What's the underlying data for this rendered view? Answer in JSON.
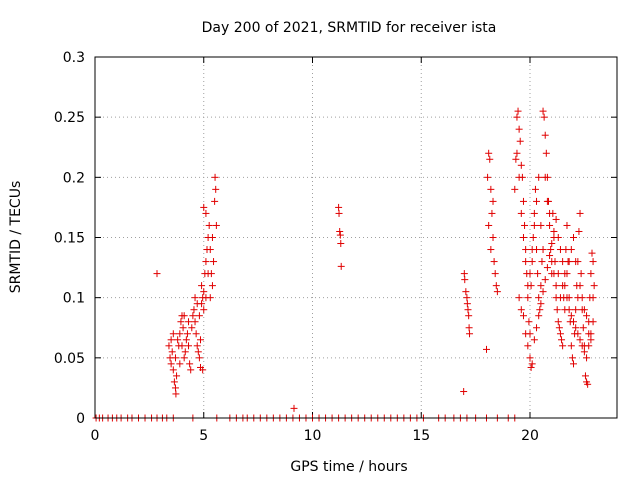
{
  "chart_data": {
    "type": "scatter",
    "title": "Day 200 of 2021, SRMTID for receiver ista",
    "xlabel": "GPS time / hours",
    "ylabel": "SRMTID / TECUs",
    "xlim": [
      0,
      24
    ],
    "ylim": [
      0,
      0.3
    ],
    "xticks": [
      0,
      5,
      10,
      15,
      20
    ],
    "xtick_labels": [
      "0",
      "5",
      "10",
      "15",
      "20"
    ],
    "yticks": [
      0,
      0.05,
      0.1,
      0.15,
      0.2,
      0.25,
      0.3
    ],
    "ytick_labels": [
      "0",
      "0.05",
      "0.1",
      "0.15",
      "0.2",
      "0.25",
      "0.3"
    ],
    "grid": true,
    "marker": "plus",
    "color": "#e00000",
    "series": [
      {
        "name": "SRMTID",
        "points": [
          [
            0.05,
            0
          ],
          [
            0.2,
            0
          ],
          [
            0.35,
            0
          ],
          [
            0.6,
            0
          ],
          [
            0.8,
            0
          ],
          [
            1.0,
            0
          ],
          [
            1.2,
            0
          ],
          [
            1.5,
            0
          ],
          [
            1.7,
            0
          ],
          [
            2.0,
            0
          ],
          [
            2.3,
            0
          ],
          [
            2.6,
            0
          ],
          [
            2.85,
            0
          ],
          [
            3.1,
            0
          ],
          [
            3.3,
            0
          ],
          [
            3.6,
            0
          ],
          [
            4.5,
            0
          ],
          [
            5.6,
            0
          ],
          [
            6.2,
            0
          ],
          [
            6.5,
            0
          ],
          [
            6.8,
            0
          ],
          [
            7.0,
            0
          ],
          [
            7.3,
            0
          ],
          [
            7.6,
            0
          ],
          [
            7.9,
            0
          ],
          [
            8.2,
            0
          ],
          [
            8.5,
            0
          ],
          [
            8.8,
            0
          ],
          [
            9.1,
            0
          ],
          [
            9.4,
            0
          ],
          [
            9.7,
            0
          ],
          [
            10.0,
            0
          ],
          [
            10.3,
            0
          ],
          [
            10.6,
            0
          ],
          [
            10.9,
            0
          ],
          [
            11.2,
            0
          ],
          [
            11.5,
            0
          ],
          [
            11.8,
            0
          ],
          [
            12.1,
            0
          ],
          [
            12.4,
            0
          ],
          [
            12.7,
            0
          ],
          [
            13.0,
            0
          ],
          [
            13.3,
            0
          ],
          [
            13.6,
            0
          ],
          [
            13.9,
            0
          ],
          [
            14.2,
            0
          ],
          [
            14.5,
            0
          ],
          [
            14.8,
            0
          ],
          [
            15.1,
            0
          ],
          [
            15.8,
            0
          ],
          [
            16.1,
            0
          ],
          [
            16.5,
            0
          ],
          [
            16.8,
            0
          ],
          [
            17.1,
            0
          ],
          [
            17.5,
            0
          ],
          [
            18.0,
            0
          ],
          [
            18.5,
            0
          ],
          [
            19.0,
            0
          ],
          [
            19.3,
            0
          ],
          [
            2.85,
            0.12
          ],
          [
            9.15,
            0.008
          ],
          [
            3.4,
            0.06
          ],
          [
            3.45,
            0.05
          ],
          [
            3.5,
            0.045
          ],
          [
            3.55,
            0.055
          ],
          [
            3.6,
            0.04
          ],
          [
            3.65,
            0.03
          ],
          [
            3.7,
            0.025
          ],
          [
            3.72,
            0.02
          ],
          [
            3.75,
            0.035
          ],
          [
            3.8,
            0.065
          ],
          [
            3.85,
            0.06
          ],
          [
            3.9,
            0.07
          ],
          [
            3.95,
            0.08
          ],
          [
            4.0,
            0.085
          ],
          [
            4.05,
            0.075
          ],
          [
            4.1,
            0.05
          ],
          [
            4.15,
            0.055
          ],
          [
            4.2,
            0.065
          ],
          [
            4.25,
            0.07
          ],
          [
            4.3,
            0.06
          ],
          [
            4.35,
            0.045
          ],
          [
            4.4,
            0.04
          ],
          [
            4.45,
            0.075
          ],
          [
            4.5,
            0.085
          ],
          [
            4.55,
            0.09
          ],
          [
            4.6,
            0.08
          ],
          [
            4.65,
            0.07
          ],
          [
            4.7,
            0.06
          ],
          [
            4.75,
            0.055
          ],
          [
            4.8,
            0.05
          ],
          [
            4.85,
            0.065
          ],
          [
            4.9,
            0.095
          ],
          [
            4.95,
            0.1
          ],
          [
            5.0,
            0.105
          ],
          [
            5.05,
            0.12
          ],
          [
            5.1,
            0.13
          ],
          [
            5.15,
            0.14
          ],
          [
            5.2,
            0.15
          ],
          [
            5.25,
            0.16
          ],
          [
            5.3,
            0.14
          ],
          [
            5.35,
            0.12
          ],
          [
            5.4,
            0.11
          ],
          [
            5.45,
            0.13
          ],
          [
            5.5,
            0.18
          ],
          [
            5.52,
            0.2
          ],
          [
            5.55,
            0.19
          ],
          [
            5.58,
            0.16
          ],
          [
            3.5,
            0.065
          ],
          [
            3.6,
            0.07
          ],
          [
            3.7,
            0.05
          ],
          [
            3.9,
            0.045
          ],
          [
            4.0,
            0.06
          ],
          [
            4.1,
            0.085
          ],
          [
            4.3,
            0.08
          ],
          [
            4.6,
            0.1
          ],
          [
            4.7,
            0.095
          ],
          [
            4.8,
            0.085
          ],
          [
            4.9,
            0.11
          ],
          [
            5.0,
            0.09
          ],
          [
            5.1,
            0.1
          ],
          [
            5.2,
            0.12
          ],
          [
            5.3,
            0.1
          ],
          [
            5.4,
            0.15
          ],
          [
            5.0,
            0.175
          ],
          [
            5.1,
            0.17
          ],
          [
            4.95,
            0.04
          ],
          [
            4.85,
            0.042
          ],
          [
            11.2,
            0.175
          ],
          [
            11.22,
            0.17
          ],
          [
            11.25,
            0.155
          ],
          [
            11.28,
            0.152
          ],
          [
            11.3,
            0.145
          ],
          [
            11.32,
            0.126
          ],
          [
            16.95,
            0.022
          ],
          [
            16.98,
            0.12
          ],
          [
            17.0,
            0.115
          ],
          [
            17.05,
            0.105
          ],
          [
            17.1,
            0.1
          ],
          [
            17.12,
            0.095
          ],
          [
            17.15,
            0.09
          ],
          [
            17.18,
            0.085
          ],
          [
            17.2,
            0.075
          ],
          [
            17.22,
            0.07
          ],
          [
            18.0,
            0.057
          ],
          [
            18.05,
            0.2
          ],
          [
            18.1,
            0.22
          ],
          [
            18.15,
            0.215
          ],
          [
            18.2,
            0.19
          ],
          [
            18.25,
            0.17
          ],
          [
            18.3,
            0.15
          ],
          [
            18.35,
            0.13
          ],
          [
            18.4,
            0.12
          ],
          [
            18.45,
            0.11
          ],
          [
            18.5,
            0.105
          ],
          [
            18.1,
            0.16
          ],
          [
            18.2,
            0.14
          ],
          [
            18.3,
            0.18
          ],
          [
            19.3,
            0.19
          ],
          [
            19.35,
            0.215
          ],
          [
            19.4,
            0.25
          ],
          [
            19.45,
            0.255
          ],
          [
            19.5,
            0.24
          ],
          [
            19.55,
            0.23
          ],
          [
            19.6,
            0.21
          ],
          [
            19.65,
            0.2
          ],
          [
            19.7,
            0.18
          ],
          [
            19.75,
            0.16
          ],
          [
            19.8,
            0.14
          ],
          [
            19.85,
            0.12
          ],
          [
            19.9,
            0.1
          ],
          [
            19.95,
            0.08
          ],
          [
            20.0,
            0.07
          ],
          [
            20.05,
            0.11
          ],
          [
            20.1,
            0.13
          ],
          [
            20.15,
            0.15
          ],
          [
            20.2,
            0.17
          ],
          [
            20.25,
            0.19
          ],
          [
            20.3,
            0.14
          ],
          [
            20.35,
            0.12
          ],
          [
            20.4,
            0.1
          ],
          [
            20.45,
            0.09
          ],
          [
            20.5,
            0.11
          ],
          [
            20.55,
            0.13
          ],
          [
            20.6,
            0.255
          ],
          [
            20.65,
            0.25
          ],
          [
            20.7,
            0.235
          ],
          [
            20.75,
            0.22
          ],
          [
            20.8,
            0.2
          ],
          [
            20.85,
            0.18
          ],
          [
            20.9,
            0.16
          ],
          [
            20.95,
            0.14
          ],
          [
            21.0,
            0.12
          ],
          [
            21.05,
            0.17
          ],
          [
            21.1,
            0.15
          ],
          [
            21.15,
            0.13
          ],
          [
            21.2,
            0.11
          ],
          [
            21.25,
            0.09
          ],
          [
            21.3,
            0.08
          ],
          [
            21.35,
            0.075
          ],
          [
            21.4,
            0.07
          ],
          [
            21.45,
            0.065
          ],
          [
            21.5,
            0.06
          ],
          [
            21.55,
            0.1
          ],
          [
            21.6,
            0.12
          ],
          [
            21.65,
            0.14
          ],
          [
            21.7,
            0.16
          ],
          [
            21.75,
            0.13
          ],
          [
            21.8,
            0.1
          ],
          [
            21.85,
            0.08
          ],
          [
            21.9,
            0.06
          ],
          [
            21.95,
            0.05
          ],
          [
            22.0,
            0.045
          ],
          [
            22.05,
            0.07
          ],
          [
            22.1,
            0.09
          ],
          [
            22.15,
            0.11
          ],
          [
            22.2,
            0.13
          ],
          [
            22.25,
            0.155
          ],
          [
            22.3,
            0.17
          ],
          [
            22.35,
            0.12
          ],
          [
            22.4,
            0.09
          ],
          [
            22.45,
            0.075
          ],
          [
            22.5,
            0.06
          ],
          [
            22.55,
            0.035
          ],
          [
            22.6,
            0.03
          ],
          [
            22.65,
            0.028
          ],
          [
            22.7,
            0.08
          ],
          [
            22.75,
            0.1
          ],
          [
            22.8,
            0.12
          ],
          [
            22.85,
            0.137
          ],
          [
            22.9,
            0.13
          ],
          [
            22.95,
            0.11
          ],
          [
            19.5,
            0.1
          ],
          [
            19.6,
            0.09
          ],
          [
            19.7,
            0.085
          ],
          [
            19.8,
            0.07
          ],
          [
            19.9,
            0.06
          ],
          [
            20.0,
            0.05
          ],
          [
            20.05,
            0.042
          ],
          [
            20.1,
            0.045
          ],
          [
            20.2,
            0.065
          ],
          [
            20.3,
            0.075
          ],
          [
            20.4,
            0.085
          ],
          [
            20.5,
            0.095
          ],
          [
            20.6,
            0.105
          ],
          [
            20.7,
            0.115
          ],
          [
            20.8,
            0.125
          ],
          [
            20.9,
            0.135
          ],
          [
            21.0,
            0.145
          ],
          [
            21.1,
            0.155
          ],
          [
            21.2,
            0.165
          ],
          [
            21.3,
            0.15
          ],
          [
            21.4,
            0.14
          ],
          [
            21.5,
            0.13
          ],
          [
            21.6,
            0.11
          ],
          [
            21.7,
            0.1
          ],
          [
            21.8,
            0.09
          ],
          [
            21.9,
            0.085
          ],
          [
            22.0,
            0.08
          ],
          [
            22.1,
            0.075
          ],
          [
            22.2,
            0.07
          ],
          [
            22.3,
            0.065
          ],
          [
            22.4,
            0.06
          ],
          [
            22.5,
            0.055
          ],
          [
            22.6,
            0.05
          ],
          [
            22.7,
            0.06
          ],
          [
            22.8,
            0.07
          ],
          [
            22.9,
            0.08
          ],
          [
            19.4,
            0.22
          ],
          [
            19.5,
            0.2
          ],
          [
            19.6,
            0.17
          ],
          [
            19.7,
            0.15
          ],
          [
            19.8,
            0.13
          ],
          [
            19.9,
            0.11
          ],
          [
            20.0,
            0.12
          ],
          [
            20.1,
            0.14
          ],
          [
            20.2,
            0.16
          ],
          [
            20.3,
            0.18
          ],
          [
            20.4,
            0.2
          ],
          [
            20.5,
            0.16
          ],
          [
            20.6,
            0.14
          ],
          [
            20.7,
            0.2
          ],
          [
            20.8,
            0.18
          ],
          [
            20.9,
            0.17
          ],
          [
            21.0,
            0.13
          ],
          [
            21.1,
            0.12
          ],
          [
            21.2,
            0.1
          ],
          [
            21.3,
            0.12
          ],
          [
            21.4,
            0.1
          ],
          [
            21.5,
            0.11
          ],
          [
            21.6,
            0.09
          ],
          [
            21.7,
            0.12
          ],
          [
            21.8,
            0.13
          ],
          [
            21.9,
            0.14
          ],
          [
            22.0,
            0.15
          ],
          [
            22.1,
            0.13
          ],
          [
            22.2,
            0.1
          ],
          [
            22.3,
            0.11
          ],
          [
            22.4,
            0.1
          ],
          [
            22.5,
            0.09
          ],
          [
            22.6,
            0.085
          ],
          [
            22.7,
            0.07
          ],
          [
            22.8,
            0.065
          ],
          [
            22.9,
            0.1
          ]
        ]
      }
    ]
  }
}
